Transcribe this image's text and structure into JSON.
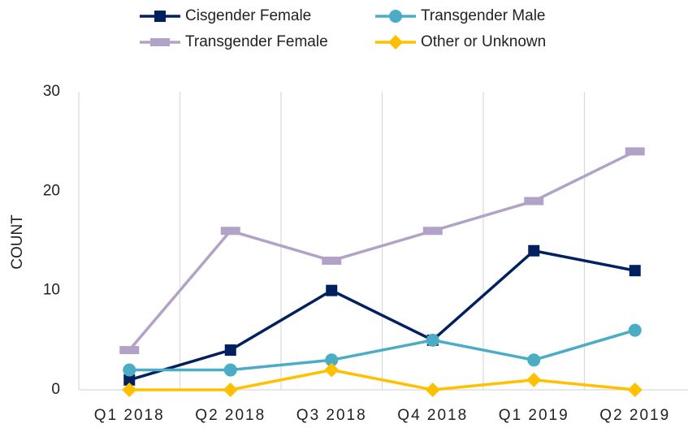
{
  "chart_data": {
    "type": "line",
    "y_label": "COUNT",
    "categories": [
      "Q1 2018",
      "Q2 2018",
      "Q3 2018",
      "Q4 2018",
      "Q1 2019",
      "Q2 2019"
    ],
    "series": [
      {
        "name": "Cisgender Female",
        "color": "#002060",
        "marker": "square",
        "values": [
          1,
          4,
          10,
          5,
          14,
          12
        ]
      },
      {
        "name": "Transgender Male",
        "color": "#4bacc6",
        "marker": "circle",
        "values": [
          2,
          2,
          3,
          5,
          3,
          6
        ]
      },
      {
        "name": "Transgender Female",
        "color": "#b3a2c7",
        "marker": "dash",
        "values": [
          4,
          16,
          13,
          16,
          19,
          24
        ]
      },
      {
        "name": "Other or Unknown",
        "color": "#ffc000",
        "marker": "diamond",
        "values": [
          0,
          0,
          2,
          0,
          1,
          0
        ]
      }
    ],
    "ylim": [
      0,
      30
    ],
    "yticks": [
      0,
      10,
      20,
      30
    ],
    "grid": "x",
    "legend": "top"
  }
}
